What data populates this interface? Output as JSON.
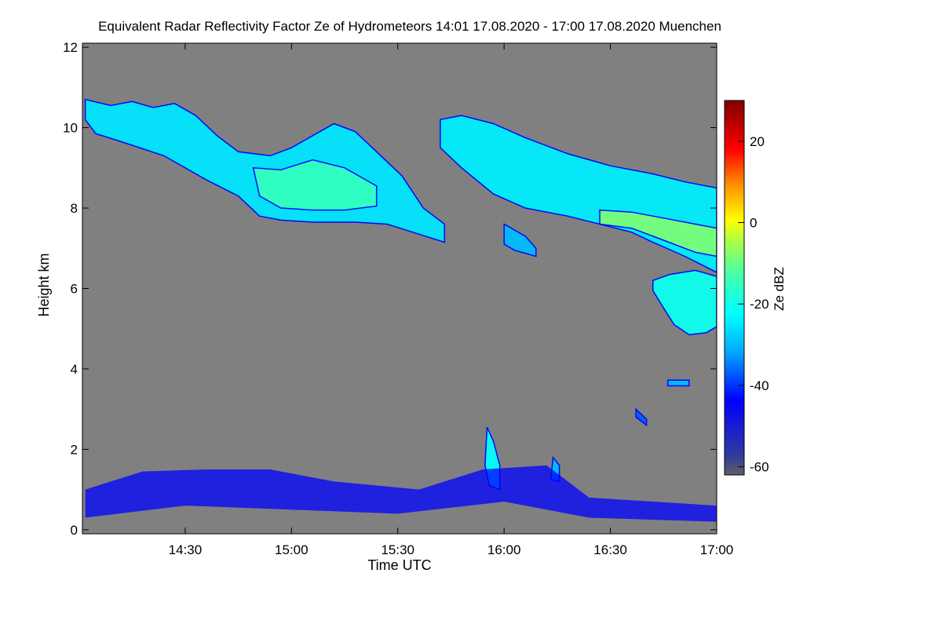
{
  "chart_data": {
    "type": "heatmap",
    "title": "Equivalent Radar Reflectivity Factor Ze of Hydrometeors   14:01 17.08.2020 - 17:00 17.08.2020 Muenchen",
    "xlabel": "Time UTC",
    "ylabel": "Height km",
    "xlim": [
      14.0167,
      17.0
    ],
    "ylim": [
      -0.1,
      12.1
    ],
    "x_ticks": [
      {
        "value": 14.5,
        "label": "14:30"
      },
      {
        "value": 15.0,
        "label": "15:00"
      },
      {
        "value": 15.5,
        "label": "15:30"
      },
      {
        "value": 16.0,
        "label": "16:00"
      },
      {
        "value": 16.5,
        "label": "16:30"
      },
      {
        "value": 17.0,
        "label": "17:00"
      }
    ],
    "y_ticks": [
      {
        "value": 0,
        "label": "0"
      },
      {
        "value": 2,
        "label": "2"
      },
      {
        "value": 4,
        "label": "4"
      },
      {
        "value": 6,
        "label": "6"
      },
      {
        "value": 8,
        "label": "8"
      },
      {
        "value": 10,
        "label": "10"
      },
      {
        "value": 12,
        "label": "12"
      }
    ],
    "colorbar": {
      "label": "Ze dBZ",
      "range": [
        -62,
        30
      ],
      "ticks": [
        {
          "value": 20,
          "label": "20"
        },
        {
          "value": 0,
          "label": "0"
        },
        {
          "value": -20,
          "label": "-20"
        },
        {
          "value": -40,
          "label": "-40"
        },
        {
          "value": -60,
          "label": "-60"
        }
      ]
    },
    "background_color": "#808080",
    "echo_features": [
      {
        "name": "upper-cirrus-band-west",
        "dbz": -25,
        "top": [
          [
            14.03,
            10.7
          ],
          [
            14.15,
            10.55
          ],
          [
            14.25,
            10.65
          ],
          [
            14.35,
            10.5
          ],
          [
            14.45,
            10.6
          ],
          [
            14.55,
            10.3
          ],
          [
            14.65,
            9.8
          ],
          [
            14.75,
            9.4
          ],
          [
            14.9,
            9.3
          ],
          [
            15.0,
            9.5
          ],
          [
            15.1,
            9.8
          ],
          [
            15.2,
            10.1
          ],
          [
            15.3,
            9.9
          ],
          [
            15.4,
            9.4
          ],
          [
            15.52,
            8.8
          ],
          [
            15.62,
            8.0
          ],
          [
            15.72,
            7.6
          ]
        ],
        "bottom": [
          [
            15.72,
            7.15
          ],
          [
            15.6,
            7.35
          ],
          [
            15.45,
            7.6
          ],
          [
            15.3,
            7.65
          ],
          [
            15.1,
            7.65
          ],
          [
            14.95,
            7.7
          ],
          [
            14.85,
            7.8
          ],
          [
            14.75,
            8.3
          ],
          [
            14.6,
            8.7
          ],
          [
            14.4,
            9.3
          ],
          [
            14.2,
            9.65
          ],
          [
            14.08,
            9.85
          ],
          [
            14.03,
            10.2
          ]
        ]
      },
      {
        "name": "upper-cirrus-band-west-core",
        "dbz": -14,
        "top": [
          [
            14.82,
            9.0
          ],
          [
            14.95,
            8.95
          ],
          [
            15.1,
            9.2
          ],
          [
            15.25,
            9.0
          ],
          [
            15.4,
            8.55
          ]
        ],
        "bottom": [
          [
            15.4,
            8.05
          ],
          [
            15.25,
            7.95
          ],
          [
            15.1,
            7.95
          ],
          [
            14.95,
            8.0
          ],
          [
            14.85,
            8.3
          ]
        ]
      },
      {
        "name": "upper-cirrus-band-east",
        "dbz": -24,
        "top": [
          [
            15.7,
            10.2
          ],
          [
            15.8,
            10.3
          ],
          [
            15.95,
            10.1
          ],
          [
            16.1,
            9.75
          ],
          [
            16.3,
            9.35
          ],
          [
            16.5,
            9.05
          ],
          [
            16.7,
            8.85
          ],
          [
            16.85,
            8.65
          ],
          [
            17.0,
            8.5
          ]
        ],
        "bottom": [
          [
            17.0,
            6.4
          ],
          [
            16.85,
            6.8
          ],
          [
            16.7,
            7.15
          ],
          [
            16.6,
            7.4
          ],
          [
            16.45,
            7.6
          ],
          [
            16.3,
            7.8
          ],
          [
            16.1,
            8.0
          ],
          [
            15.95,
            8.35
          ],
          [
            15.8,
            9.0
          ],
          [
            15.7,
            9.5
          ]
        ]
      },
      {
        "name": "upper-cirrus-band-east-core",
        "dbz": -8,
        "top": [
          [
            16.45,
            7.95
          ],
          [
            16.6,
            7.9
          ],
          [
            16.75,
            7.75
          ],
          [
            16.9,
            7.6
          ],
          [
            17.0,
            7.5
          ]
        ],
        "bottom": [
          [
            17.0,
            6.8
          ],
          [
            16.9,
            6.9
          ],
          [
            16.75,
            7.2
          ],
          [
            16.6,
            7.5
          ],
          [
            16.45,
            7.6
          ]
        ]
      },
      {
        "name": "mid-level-cell",
        "dbz": -20,
        "top": [
          [
            16.7,
            6.2
          ],
          [
            16.78,
            6.35
          ],
          [
            16.9,
            6.45
          ],
          [
            17.0,
            6.3
          ]
        ],
        "bottom": [
          [
            17.0,
            5.05
          ],
          [
            16.95,
            4.9
          ],
          [
            16.87,
            4.85
          ],
          [
            16.8,
            5.1
          ],
          [
            16.74,
            5.6
          ],
          [
            16.7,
            5.95
          ]
        ]
      },
      {
        "name": "fallstreak-lobe",
        "dbz": -30,
        "top": [
          [
            16.0,
            7.6
          ],
          [
            16.1,
            7.3
          ],
          [
            16.15,
            7.0
          ]
        ],
        "bottom": [
          [
            16.15,
            6.8
          ],
          [
            16.05,
            6.95
          ],
          [
            16.0,
            7.1
          ]
        ]
      },
      {
        "name": "small-echo-3.6km",
        "dbz": -30,
        "top": [
          [
            16.77,
            3.72
          ],
          [
            16.87,
            3.72
          ]
        ],
        "bottom": [
          [
            16.87,
            3.58
          ],
          [
            16.77,
            3.58
          ]
        ]
      },
      {
        "name": "small-echo-2.9km",
        "dbz": -38,
        "top": [
          [
            16.62,
            3.0
          ],
          [
            16.67,
            2.75
          ]
        ],
        "bottom": [
          [
            16.67,
            2.6
          ],
          [
            16.62,
            2.8
          ]
        ]
      },
      {
        "name": "convective-plume-16h",
        "dbz": -22,
        "top": [
          [
            15.92,
            2.55
          ],
          [
            15.95,
            2.2
          ],
          [
            15.98,
            1.6
          ]
        ],
        "bottom": [
          [
            15.98,
            1.0
          ],
          [
            15.93,
            1.1
          ],
          [
            15.91,
            1.6
          ]
        ]
      },
      {
        "name": "convective-plume-16h15",
        "dbz": -30,
        "top": [
          [
            16.23,
            1.8
          ],
          [
            16.26,
            1.6
          ]
        ],
        "bottom": [
          [
            16.26,
            1.2
          ],
          [
            16.22,
            1.25
          ]
        ]
      },
      {
        "name": "boundary-layer-clutter",
        "dbz": -45,
        "top": [
          [
            14.03,
            1.0
          ],
          [
            14.3,
            1.45
          ],
          [
            14.6,
            1.5
          ],
          [
            14.9,
            1.5
          ],
          [
            15.2,
            1.2
          ],
          [
            15.6,
            1.0
          ],
          [
            15.9,
            1.5
          ],
          [
            16.2,
            1.6
          ],
          [
            16.4,
            0.8
          ],
          [
            17.0,
            0.6
          ]
        ],
        "bottom": [
          [
            17.0,
            0.2
          ],
          [
            16.4,
            0.3
          ],
          [
            16.0,
            0.7
          ],
          [
            15.5,
            0.4
          ],
          [
            15.0,
            0.5
          ],
          [
            14.5,
            0.6
          ],
          [
            14.03,
            0.3
          ]
        ]
      }
    ]
  }
}
